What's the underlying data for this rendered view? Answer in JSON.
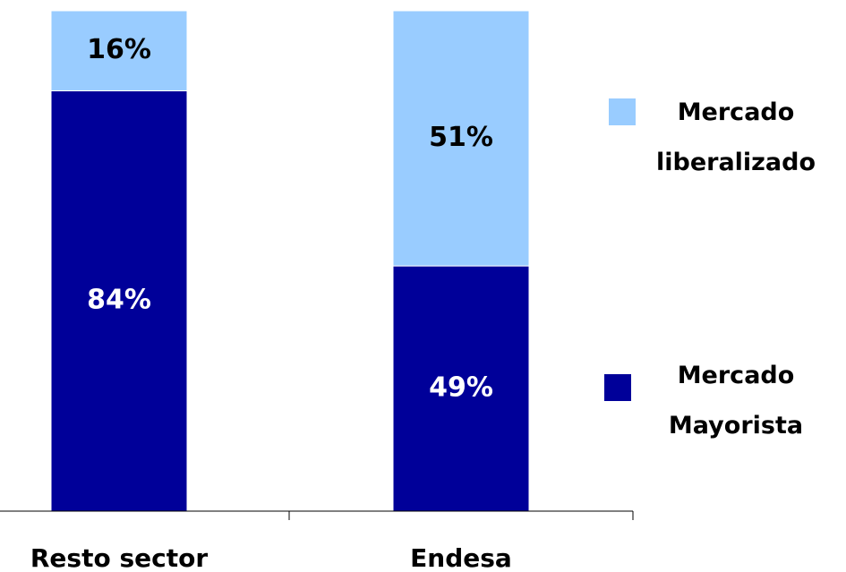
{
  "chart_data": {
    "type": "stacked_bar",
    "categories": [
      "Resto sector",
      "Endesa"
    ],
    "series": [
      {
        "name": "Mercado Mayorista",
        "color": "#000099",
        "values": [
          84,
          49
        ],
        "value_labels": [
          "84%",
          "49%"
        ]
      },
      {
        "name": "Mercado liberalizado",
        "color": "#99ccff",
        "values": [
          16,
          51
        ],
        "value_labels": [
          "16%",
          "51%"
        ]
      }
    ],
    "ylim": [
      0,
      100
    ],
    "legend": "right"
  }
}
